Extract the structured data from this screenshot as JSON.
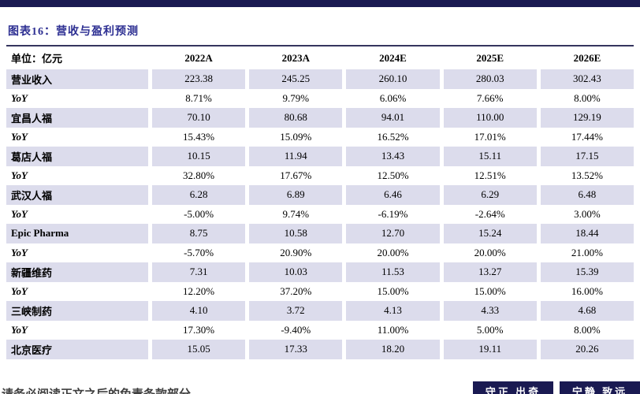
{
  "colors": {
    "bar": "#1A1A52",
    "title": "#2D2F92",
    "shade": "#DCDCEC",
    "border": "#35355E"
  },
  "page": {
    "title": "图表16：营收与盈利预测",
    "footer_left": "请务必阅读正文之后的免责条款部分",
    "motto_1": "守正 出奇",
    "motto_2": "宁静 致远"
  },
  "table": {
    "unit_label": "单位：亿元",
    "columns": [
      "2022A",
      "2023A",
      "2024E",
      "2025E",
      "2026E"
    ],
    "rows": [
      {
        "label": "营业收入",
        "italic": false,
        "shaded": true,
        "values": [
          "223.38",
          "245.25",
          "260.10",
          "280.03",
          "302.43"
        ]
      },
      {
        "label": "YoY",
        "italic": true,
        "shaded": false,
        "values": [
          "8.71%",
          "9.79%",
          "6.06%",
          "7.66%",
          "8.00%"
        ]
      },
      {
        "label": "宜昌人福",
        "italic": false,
        "shaded": true,
        "values": [
          "70.10",
          "80.68",
          "94.01",
          "110.00",
          "129.19"
        ]
      },
      {
        "label": "YoY",
        "italic": true,
        "shaded": false,
        "values": [
          "15.43%",
          "15.09%",
          "16.52%",
          "17.01%",
          "17.44%"
        ]
      },
      {
        "label": "葛店人福",
        "italic": false,
        "shaded": true,
        "values": [
          "10.15",
          "11.94",
          "13.43",
          "15.11",
          "17.15"
        ]
      },
      {
        "label": "YoY",
        "italic": true,
        "shaded": false,
        "values": [
          "32.80%",
          "17.67%",
          "12.50%",
          "12.51%",
          "13.52%"
        ]
      },
      {
        "label": "武汉人福",
        "italic": false,
        "shaded": true,
        "values": [
          "6.28",
          "6.89",
          "6.46",
          "6.29",
          "6.48"
        ]
      },
      {
        "label": "YoY",
        "italic": true,
        "shaded": false,
        "values": [
          "-5.00%",
          "9.74%",
          "-6.19%",
          "-2.64%",
          "3.00%"
        ]
      },
      {
        "label": "Epic Pharma",
        "italic": false,
        "shaded": true,
        "values": [
          "8.75",
          "10.58",
          "12.70",
          "15.24",
          "18.44"
        ]
      },
      {
        "label": "YoY",
        "italic": true,
        "shaded": false,
        "values": [
          "-5.70%",
          "20.90%",
          "20.00%",
          "20.00%",
          "21.00%"
        ]
      },
      {
        "label": "新疆维药",
        "italic": false,
        "shaded": true,
        "values": [
          "7.31",
          "10.03",
          "11.53",
          "13.27",
          "15.39"
        ]
      },
      {
        "label": "YoY",
        "italic": true,
        "shaded": false,
        "values": [
          "12.20%",
          "37.20%",
          "15.00%",
          "15.00%",
          "16.00%"
        ]
      },
      {
        "label": "三峡制药",
        "italic": false,
        "shaded": true,
        "values": [
          "4.10",
          "3.72",
          "4.13",
          "4.33",
          "4.68"
        ]
      },
      {
        "label": "YoY",
        "italic": true,
        "shaded": false,
        "values": [
          "17.30%",
          "-9.40%",
          "11.00%",
          "5.00%",
          "8.00%"
        ]
      },
      {
        "label": "北京医疗",
        "italic": false,
        "shaded": true,
        "values": [
          "15.05",
          "17.33",
          "18.20",
          "19.11",
          "20.26"
        ]
      }
    ]
  }
}
